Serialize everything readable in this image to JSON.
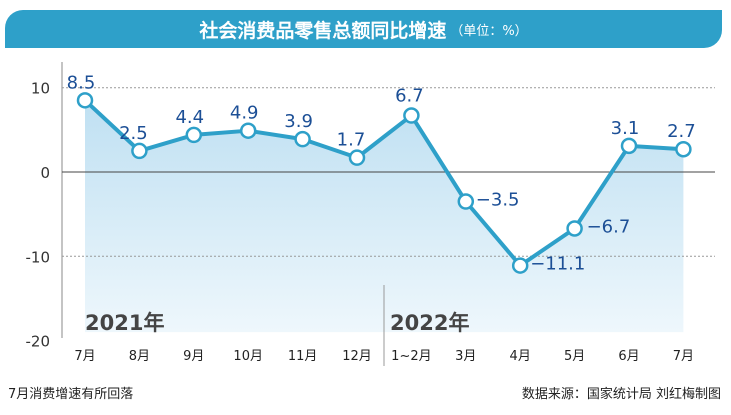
{
  "chart_data": {
    "type": "line",
    "title": "社会消费品零售总额同比增速",
    "unit": "（单位：%）",
    "categories": [
      "7月",
      "8月",
      "9月",
      "10月",
      "11月",
      "12月",
      "1~2月",
      "3月",
      "4月",
      "5月",
      "6月",
      "7月"
    ],
    "values": [
      8.5,
      2.5,
      4.4,
      4.9,
      3.9,
      1.7,
      6.7,
      -3.5,
      -11.1,
      -6.7,
      3.1,
      2.7
    ],
    "value_labels": [
      "8.5",
      "2.5",
      "4.4",
      "4.9",
      "3.9",
      "1.7",
      "6.7",
      "−3.5",
      "−11.1",
      "−6.7",
      "3.1",
      "2.7"
    ],
    "ylim": [
      -20,
      13
    ],
    "yticks": [
      10,
      0,
      -10,
      -20
    ],
    "ytick_labels": [
      "10",
      "0",
      "-10",
      "-20"
    ],
    "year_labels": [
      "2021年",
      "2022年"
    ],
    "line_color": "#2ea0c9",
    "label_color": "#1c4f96"
  },
  "footer": {
    "left": "7月消费增速有所回落",
    "right": "数据来源：国家统计局  刘红梅制图"
  }
}
